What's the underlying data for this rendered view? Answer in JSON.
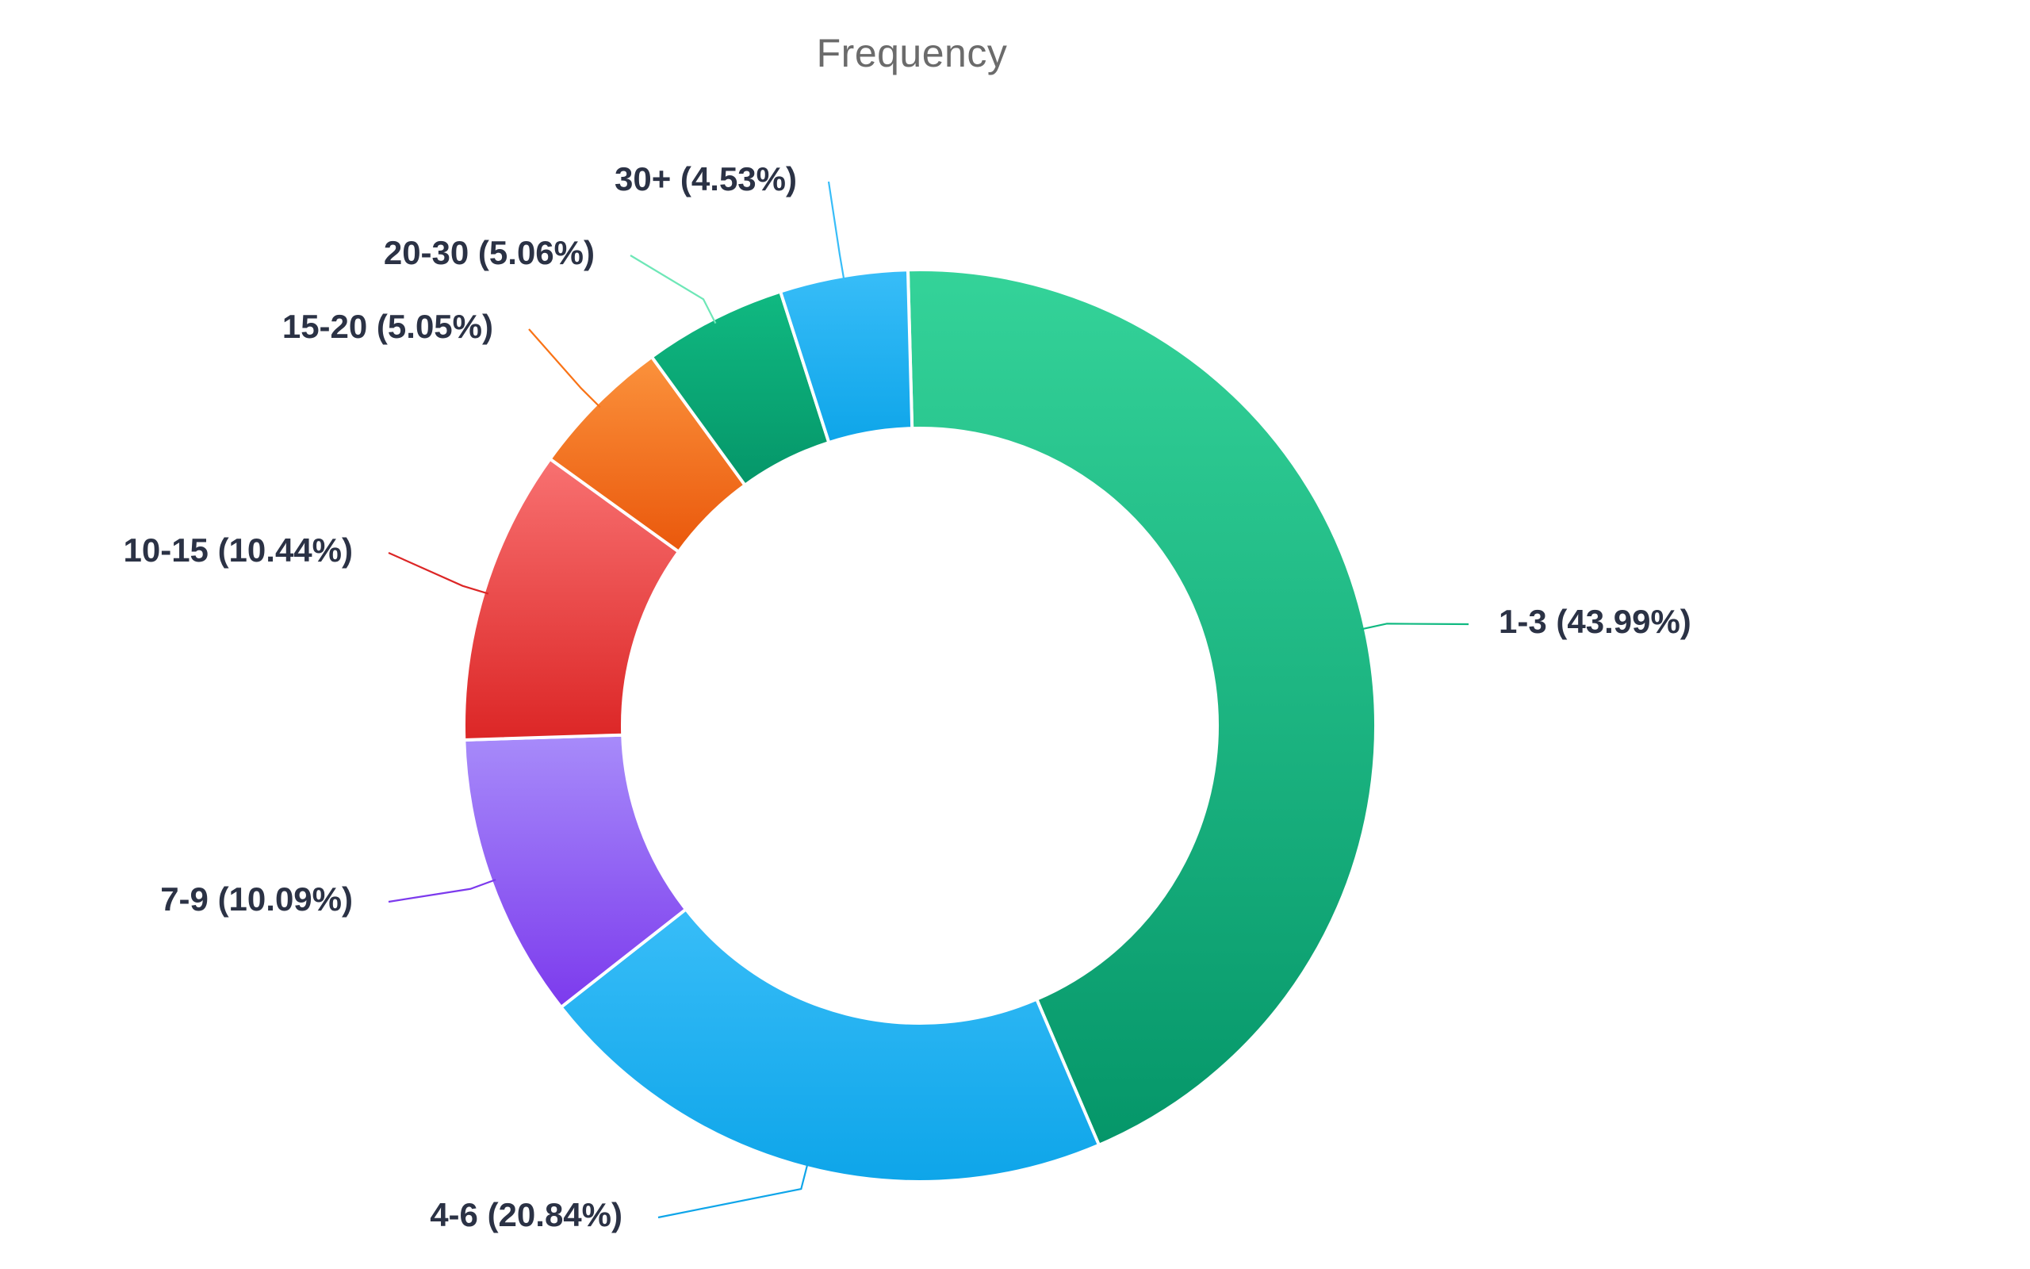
{
  "chart_data": {
    "type": "pie",
    "title": "Frequency",
    "style": "donut",
    "series": [
      {
        "name": "1-3",
        "value": 43.99,
        "label": "1-3 (43.99%)",
        "color_top": "#34d399",
        "color_bottom": "#059669",
        "leader": "#10b981"
      },
      {
        "name": "4-6",
        "value": 20.84,
        "label": "4-6 (20.84%)",
        "color_top": "#38bdf8",
        "color_bottom": "#0ea5e9",
        "leader": "#0ea5e9"
      },
      {
        "name": "7-9",
        "value": 10.09,
        "label": "7-9 (10.09%)",
        "color_top": "#a78bfa",
        "color_bottom": "#7c3aed",
        "leader": "#7c3aed"
      },
      {
        "name": "10-15",
        "value": 10.44,
        "label": "10-15 (10.44%)",
        "color_top": "#f87171",
        "color_bottom": "#dc2626",
        "leader": "#dc2626"
      },
      {
        "name": "15-20",
        "value": 5.05,
        "label": "15-20 (5.05%)",
        "color_top": "#fb923c",
        "color_bottom": "#ea580c",
        "leader": "#f97316"
      },
      {
        "name": "20-30",
        "value": 5.06,
        "label": "20-30 (5.06%)",
        "color_top": "#10b981",
        "color_bottom": "#059669",
        "leader": "#6ee7b7"
      },
      {
        "name": "30+",
        "value": 4.53,
        "label": "30+ (4.53%)",
        "color_top": "#38bdf8",
        "color_bottom": "#0ea5e9",
        "leader": "#38bdf8"
      }
    ]
  }
}
